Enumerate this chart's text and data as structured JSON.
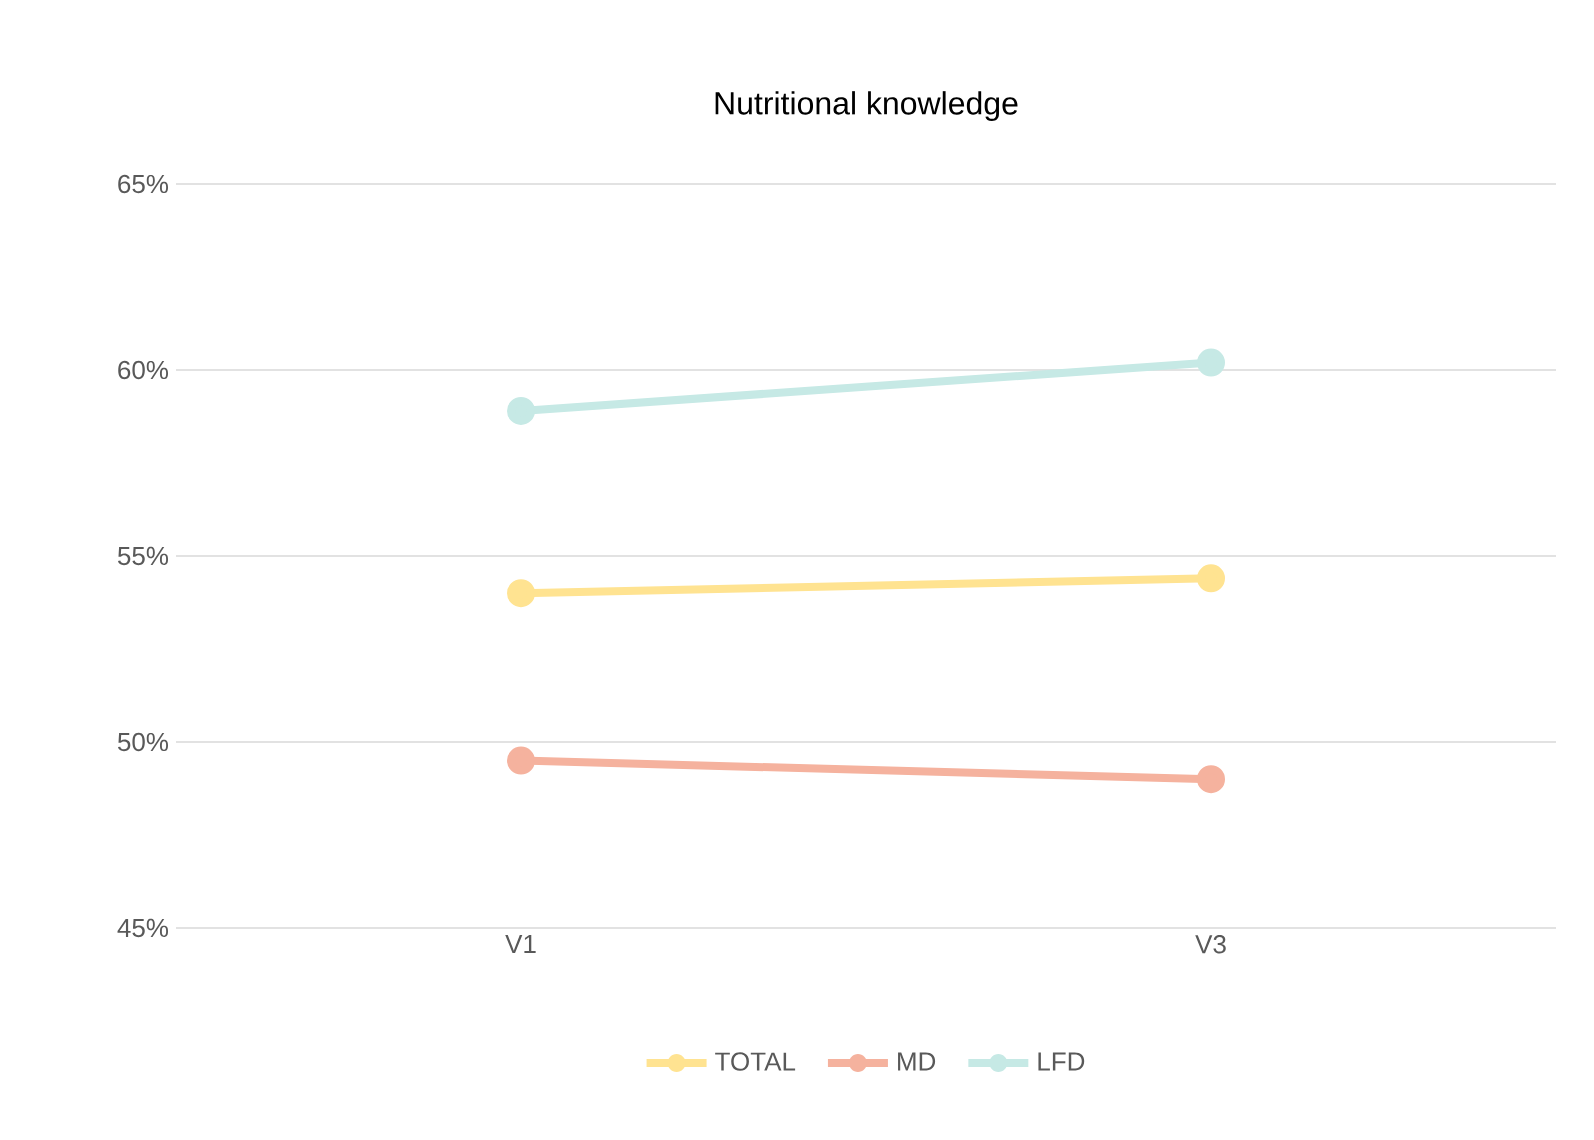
{
  "chart_data": {
    "type": "line",
    "title": "Nutritional knowledge",
    "categories": [
      "V1",
      "V3"
    ],
    "series": [
      {
        "name": "TOTAL",
        "color": "#ffe391",
        "values": [
          54.0,
          54.4
        ]
      },
      {
        "name": "MD",
        "color": "#f5b29e",
        "values": [
          49.5,
          49.0
        ]
      },
      {
        "name": "LFD",
        "color": "#c6e9e5",
        "values": [
          58.9,
          60.2
        ]
      }
    ],
    "ylim": [
      45,
      65
    ],
    "yticks": [
      {
        "value": 45,
        "label": "45%"
      },
      {
        "value": 50,
        "label": "50%"
      },
      {
        "value": 55,
        "label": "55%"
      },
      {
        "value": 60,
        "label": "60%"
      },
      {
        "value": 65,
        "label": "65%"
      }
    ],
    "grid": "y",
    "legend": "bottom",
    "marker": "circle",
    "line_style": "solid"
  }
}
